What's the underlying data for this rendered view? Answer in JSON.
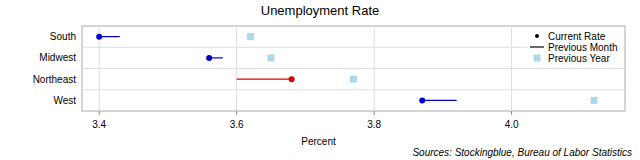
{
  "chart_data": {
    "type": "dot",
    "title": "Unemployment Rate",
    "x_label": "Percent",
    "source": "Sources: Stockingblue, Bureau of Labor Statistics",
    "orientation": "horizontal",
    "grid": true,
    "legend": "top-right",
    "categories": [
      "South",
      "Midwest",
      "Northeast",
      "West"
    ],
    "series": [
      {
        "name": "Current Rate",
        "color": "#000000",
        "marker": "circle",
        "values": [
          3.4,
          3.56,
          3.68,
          3.87
        ],
        "colors": [
          "#0000cc",
          "#0000cc",
          "#dd0000",
          "#0000cc"
        ]
      },
      {
        "name": "Previous Month",
        "color": "#000000",
        "line_style": "solid",
        "values": [
          3.43,
          3.58,
          3.6,
          3.92
        ]
      },
      {
        "name": "Previous Year",
        "color": "#add8e6",
        "marker": "square",
        "values": [
          3.62,
          3.65,
          3.77,
          4.12
        ]
      }
    ],
    "xlim": [
      3.375,
      4.165
    ],
    "xticks": [
      3.4,
      3.6,
      3.8,
      {
        "value": 4.0,
        "label": "4.0"
      }
    ]
  }
}
